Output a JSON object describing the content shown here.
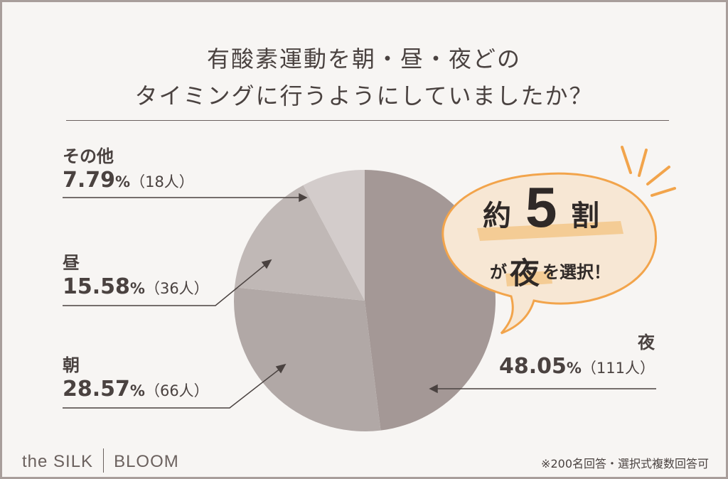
{
  "title": {
    "line1": "有酸素運動を朝・昼・夜どの",
    "line2": "タイミングに行うようにしていましたか？"
  },
  "chart_data": {
    "type": "pie",
    "title": "有酸素運動を朝・昼・夜どのタイミングに行うようにしていましたか？",
    "slices": [
      {
        "label": "夜",
        "percent": 48.05,
        "count": 111,
        "color": "#a49896"
      },
      {
        "label": "朝",
        "percent": 28.57,
        "count": 66,
        "color": "#b1a8a6"
      },
      {
        "label": "昼",
        "percent": 15.58,
        "count": 36,
        "color": "#c0b8b6"
      },
      {
        "label": "その他",
        "percent": 7.79,
        "count": 18,
        "color": "#d3cccb"
      }
    ]
  },
  "labels": {
    "other": {
      "name": "その他",
      "pct": "7.79",
      "unit": "%",
      "cnt": "（18人）"
    },
    "noon": {
      "name": "昼",
      "pct": "15.58",
      "unit": "%",
      "cnt": "（36人）"
    },
    "morning": {
      "name": "朝",
      "pct": "28.57",
      "unit": "%",
      "cnt": "（66人）"
    },
    "night": {
      "name": "夜",
      "pct": "48.05",
      "unit": "%",
      "cnt": "（111人）"
    }
  },
  "badge": {
    "prefix": "約",
    "number": "5",
    "suffix": "割",
    "line2_a": "が",
    "line2_b": "夜",
    "line2_c": "を選択！"
  },
  "logo": {
    "left": "the SILK",
    "right": "BLOOM"
  },
  "note": "※200名回答・選択式複数回答可",
  "colors": {
    "accent": "#f2a44b",
    "highlight": "#f3c98e",
    "text": "#4a4240"
  }
}
